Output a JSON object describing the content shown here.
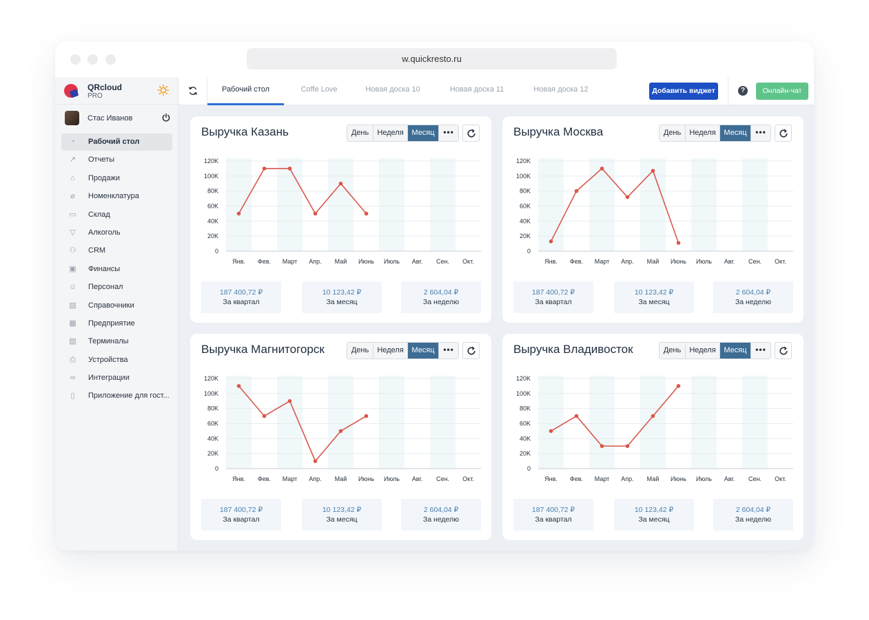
{
  "browser": {
    "url": "w.quickresto.ru"
  },
  "brand": {
    "name": "QRcloud",
    "plan": "PRO"
  },
  "user": {
    "name": "Стас Иванов"
  },
  "sidebar": {
    "items": [
      {
        "label": "Рабочий стол",
        "icon": "dashboard-icon",
        "active": true
      },
      {
        "label": "Отчеты",
        "icon": "chart-icon"
      },
      {
        "label": "Продажи",
        "icon": "basket-icon"
      },
      {
        "label": "Номенклатура",
        "icon": "tag-icon"
      },
      {
        "label": "Склад",
        "icon": "box-icon"
      },
      {
        "label": "Алкоголь",
        "icon": "glass-icon"
      },
      {
        "label": "CRM",
        "icon": "people-icon"
      },
      {
        "label": "Финансы",
        "icon": "wallet-icon"
      },
      {
        "label": "Персонал",
        "icon": "staff-icon"
      },
      {
        "label": "Справочники",
        "icon": "book-icon"
      },
      {
        "label": "Предприятие",
        "icon": "building-icon"
      },
      {
        "label": "Терминалы",
        "icon": "terminal-icon"
      },
      {
        "label": "Устройства",
        "icon": "printer-icon"
      },
      {
        "label": "Интеграции",
        "icon": "infinity-icon"
      },
      {
        "label": "Приложение для гост...",
        "icon": "phone-icon"
      }
    ]
  },
  "tabs": [
    {
      "label": "Рабочий стол",
      "active": true
    },
    {
      "label": "Coffe Love"
    },
    {
      "label": "Новая доска 10"
    },
    {
      "label": "Новая доска 11"
    },
    {
      "label": "Новая доска 12"
    }
  ],
  "topbar": {
    "add_widget": "Добавить виджет",
    "help": "?",
    "chat": "Онлайн-чат"
  },
  "period": {
    "day": "День",
    "week": "Неделя",
    "month": "Месяц",
    "more": "•••"
  },
  "months": [
    "Янв.",
    "Фев.",
    "Март",
    "Апр.",
    "Май",
    "Июнь",
    "Июль",
    "Авг.",
    "Сен.",
    "Окт."
  ],
  "colors": {
    "line": "#d9574a",
    "accent": "#3d6c94",
    "add_button": "#1c4fc4",
    "chat_button": "#5fc48a"
  },
  "cards": [
    {
      "title": "Выручка Казань",
      "stats": [
        {
          "value": "187 400,72 ₽",
          "label": "За квартал"
        },
        {
          "value": "10 123,42 ₽",
          "label": "За месяц"
        },
        {
          "value": "2 604,04 ₽",
          "label": "За неделю"
        }
      ]
    },
    {
      "title": "Выручка Москва",
      "stats": [
        {
          "value": "187 400,72 ₽",
          "label": "За квартал"
        },
        {
          "value": "10 123,42 ₽",
          "label": "За месяц"
        },
        {
          "value": "2 604,04 ₽",
          "label": "За неделю"
        }
      ]
    },
    {
      "title": "Выручка Магнитогорск",
      "stats": [
        {
          "value": "187 400,72 ₽",
          "label": "За квартал"
        },
        {
          "value": "10 123,42 ₽",
          "label": "За месяц"
        },
        {
          "value": "2 604,04 ₽",
          "label": "За неделю"
        }
      ]
    },
    {
      "title": "Выручка Владивосток",
      "stats": [
        {
          "value": "187 400,72 ₽",
          "label": "За квартал"
        },
        {
          "value": "10 123,42 ₽",
          "label": "За месяц"
        },
        {
          "value": "2 604,04 ₽",
          "label": "За неделю"
        }
      ]
    }
  ],
  "chart_data": [
    {
      "type": "line",
      "title": "Выручка Казань",
      "categories": [
        "Янв.",
        "Фев.",
        "Март",
        "Апр.",
        "Май",
        "Июнь",
        "Июль",
        "Авг.",
        "Сен.",
        "Окт."
      ],
      "yticks": [
        "0",
        "20K",
        "40K",
        "60K",
        "80K",
        "100K",
        "120K"
      ],
      "ylim": [
        0,
        120000
      ],
      "series": [
        {
          "values": [
            50000,
            110000,
            110000,
            50000,
            90000,
            50000,
            null,
            null,
            null,
            null
          ]
        }
      ]
    },
    {
      "type": "line",
      "title": "Выручка Москва",
      "categories": [
        "Янв.",
        "Фев.",
        "Март",
        "Апр.",
        "Май",
        "Июнь",
        "Июль",
        "Авг.",
        "Сен.",
        "Окт."
      ],
      "yticks": [
        "0",
        "20K",
        "40K",
        "60K",
        "80K",
        "100K",
        "120K"
      ],
      "ylim": [
        0,
        120000
      ],
      "series": [
        {
          "values": [
            13000,
            80000,
            110000,
            72000,
            107000,
            11000,
            null,
            null,
            null,
            null
          ]
        }
      ]
    },
    {
      "type": "line",
      "title": "Выручка Магнитогорск",
      "categories": [
        "Янв.",
        "Фев.",
        "Март",
        "Апр.",
        "Май",
        "Июнь",
        "Июль",
        "Авг.",
        "Сен.",
        "Окт."
      ],
      "yticks": [
        "0",
        "20K",
        "40K",
        "60K",
        "80K",
        "100K",
        "120K"
      ],
      "ylim": [
        0,
        120000
      ],
      "series": [
        {
          "values": [
            110000,
            70000,
            90000,
            10000,
            50000,
            70000,
            null,
            null,
            null,
            null
          ]
        }
      ]
    },
    {
      "type": "line",
      "title": "Выручка Владивосток",
      "categories": [
        "Янв.",
        "Фев.",
        "Март",
        "Апр.",
        "Май",
        "Июнь",
        "Июль",
        "Авг.",
        "Сен.",
        "Окт."
      ],
      "yticks": [
        "0",
        "20K",
        "40K",
        "60K",
        "80K",
        "100K",
        "120K"
      ],
      "ylim": [
        0,
        120000
      ],
      "series": [
        {
          "values": [
            50000,
            70000,
            30000,
            30000,
            70000,
            110000,
            null,
            null,
            null,
            null
          ]
        }
      ]
    }
  ]
}
